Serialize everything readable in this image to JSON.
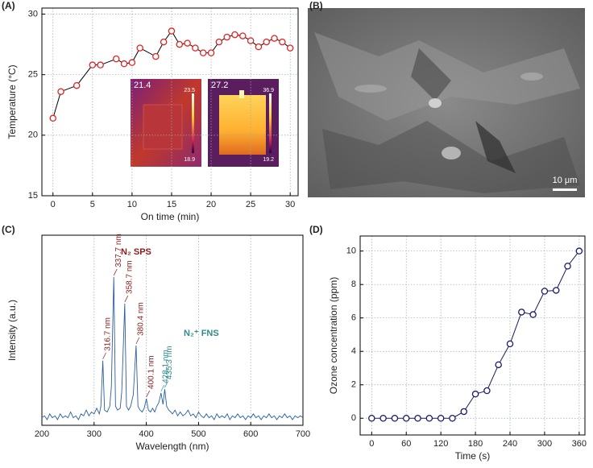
{
  "chart_data": [
    {
      "type": "line",
      "panel_label": "(A)",
      "x_label": "On time (min)",
      "y_label": "Temperature (°C)",
      "x": [
        0,
        1,
        3,
        5,
        6,
        8,
        9,
        10,
        11,
        13,
        14,
        15,
        16,
        17,
        18,
        19,
        20,
        21,
        22,
        23,
        24,
        25,
        26,
        27,
        28,
        29,
        30
      ],
      "series": [
        {
          "color": "#e02424",
          "line_color": "#000000",
          "values": [
            21.4,
            23.6,
            24.1,
            25.8,
            25.8,
            26.3,
            25.9,
            26.0,
            27.2,
            26.5,
            27.7,
            28.6,
            27.5,
            27.6,
            27.2,
            26.8,
            26.8,
            27.7,
            28.1,
            28.3,
            28.2,
            27.8,
            27.3,
            27.7,
            28.0,
            27.7,
            27.2
          ]
        }
      ],
      "xlim": [
        -1.4,
        31
      ],
      "ylim": [
        15,
        30.5
      ],
      "xticks": [
        0,
        5,
        10,
        15,
        20,
        25,
        30
      ],
      "yticks": [
        15,
        20,
        25,
        30
      ],
      "grid": true,
      "marker": "circle",
      "insets": [
        {
          "reading": 21.4,
          "max": 23.5,
          "min": 18.9
        },
        {
          "reading": 27.2,
          "max": 36.9,
          "min": 19.2
        }
      ]
    },
    {
      "type": "image",
      "panel_label": "(B)",
      "scale_bar": "10 μm"
    },
    {
      "type": "line",
      "panel_label": "(C)",
      "x_label": "Wavelength (nm)",
      "y_label": "Intensity (a.u.)",
      "x": [
        200,
        205,
        210,
        215,
        220,
        225,
        230,
        235,
        240,
        245,
        250,
        255,
        260,
        265,
        270,
        275,
        280,
        285,
        290,
        295,
        300,
        305,
        310,
        313,
        316.7,
        320,
        325,
        330,
        333,
        337.7,
        341,
        345,
        350,
        353,
        358.7,
        362,
        366,
        370,
        375,
        380.4,
        384,
        388,
        392,
        396,
        400.1,
        404,
        408,
        412,
        416,
        420,
        424,
        428.1,
        432,
        435.3,
        439,
        443,
        447,
        450,
        455,
        460,
        465,
        470,
        475,
        480,
        485,
        490,
        495,
        500,
        505,
        510,
        515,
        520,
        525,
        530,
        535,
        540,
        545,
        550,
        555,
        560,
        565,
        570,
        575,
        580,
        585,
        590,
        595,
        600,
        605,
        610,
        615,
        620,
        625,
        630,
        635,
        640,
        645,
        650,
        655,
        660,
        665,
        670,
        675,
        680,
        685,
        690,
        695,
        700
      ],
      "series": [
        {
          "color": "#2a5f9e",
          "values": [
            0.04,
            0.05,
            0.03,
            0.06,
            0.04,
            0.05,
            0.03,
            0.06,
            0.04,
            0.05,
            0.04,
            0.07,
            0.04,
            0.05,
            0.03,
            0.06,
            0.05,
            0.08,
            0.05,
            0.07,
            0.06,
            0.09,
            0.06,
            0.1,
            0.34,
            0.08,
            0.07,
            0.1,
            0.2,
            0.78,
            0.1,
            0.08,
            0.09,
            0.18,
            0.64,
            0.1,
            0.08,
            0.1,
            0.16,
            0.42,
            0.1,
            0.08,
            0.07,
            0.09,
            0.14,
            0.08,
            0.07,
            0.09,
            0.07,
            0.1,
            0.12,
            0.17,
            0.11,
            0.19,
            0.1,
            0.08,
            0.07,
            0.06,
            0.08,
            0.05,
            0.07,
            0.05,
            0.06,
            0.08,
            0.05,
            0.06,
            0.04,
            0.07,
            0.05,
            0.04,
            0.06,
            0.04,
            0.05,
            0.03,
            0.06,
            0.04,
            0.05,
            0.04,
            0.06,
            0.03,
            0.05,
            0.04,
            0.06,
            0.04,
            0.05,
            0.03,
            0.05,
            0.04,
            0.06,
            0.04,
            0.05,
            0.03,
            0.05,
            0.04,
            0.06,
            0.04,
            0.05,
            0.03,
            0.05,
            0.04,
            0.06,
            0.04,
            0.05,
            0.03,
            0.05,
            0.04,
            0.05,
            0.04
          ]
        }
      ],
      "xlim": [
        200,
        700
      ],
      "ylim": [
        0,
        1
      ],
      "xticks": [
        200,
        300,
        400,
        500,
        600,
        700
      ],
      "grid": true,
      "annotations": [
        {
          "x": 316.7,
          "label": "316.7 nm",
          "color": "#8b1a1a"
        },
        {
          "x": 337.7,
          "label": "337.7 nm",
          "color": "#8b1a1a"
        },
        {
          "x": 358.7,
          "label": "358.7 nm",
          "color": "#8b1a1a"
        },
        {
          "x": 380.4,
          "label": "380.4 nm",
          "color": "#8b1a1a"
        },
        {
          "x": 400.1,
          "label": "400.1 nm",
          "color": "#8b1a1a"
        },
        {
          "x": 428.1,
          "label": "428.1 nm",
          "color": "#2e8b8b"
        },
        {
          "x": 435.3,
          "label": "435.3 nm",
          "color": "#2e8b8b"
        }
      ],
      "groups": [
        {
          "label": "N₂ SPS",
          "color": "#8b1a1a"
        },
        {
          "label": "N₂⁺ FNS",
          "color": "#2e8b8b"
        }
      ]
    },
    {
      "type": "line",
      "panel_label": "(D)",
      "x_label": "Time (s)",
      "y_label": "Ozone concentration (ppm)",
      "x": [
        0,
        20,
        40,
        60,
        80,
        100,
        120,
        140,
        160,
        180,
        200,
        220,
        240,
        260,
        280,
        300,
        320,
        340,
        360
      ],
      "series": [
        {
          "color": "#1a1a6e",
          "line_color": "#1a1a5e",
          "values": [
            0,
            0,
            0,
            0,
            0,
            0,
            0,
            0,
            0.4,
            1.45,
            1.65,
            3.2,
            4.45,
            6.35,
            6.2,
            7.6,
            7.65,
            9.1,
            10
          ]
        }
      ],
      "xlim": [
        -20,
        370
      ],
      "ylim": [
        -1,
        10.9
      ],
      "xticks": [
        0,
        60,
        120,
        180,
        240,
        300,
        360
      ],
      "yticks": [
        0,
        2,
        4,
        6,
        8,
        10
      ],
      "grid": true,
      "marker": "circle"
    }
  ]
}
